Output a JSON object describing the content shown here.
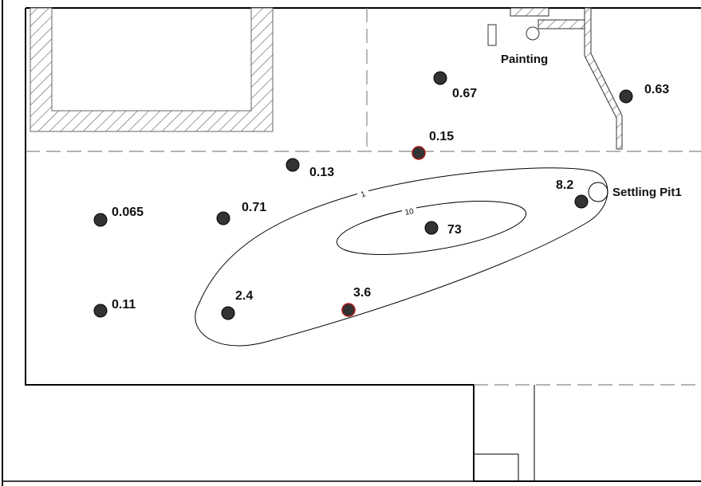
{
  "map": {
    "colors": {
      "background": "#ffffff",
      "wall": "#000000",
      "dashed_line": "#888888",
      "hatch": "#666666",
      "sample_point": "#333333",
      "highlight_ring": "#b01818",
      "contour": "#000000"
    },
    "labels": {
      "painting": "Painting",
      "settling_pit": "Settling Pit1"
    },
    "contours": [
      {
        "level_label": "1"
      },
      {
        "level_label": "10"
      }
    ],
    "samples": [
      {
        "id": "s1",
        "value": "0.67",
        "highlighted": false
      },
      {
        "id": "s2",
        "value": "0.63",
        "highlighted": false
      },
      {
        "id": "s3",
        "value": "0.15",
        "highlighted": true
      },
      {
        "id": "s4",
        "value": "0.13",
        "highlighted": false
      },
      {
        "id": "s5",
        "value": "8.2",
        "highlighted": false
      },
      {
        "id": "s6",
        "value": "0.065",
        "highlighted": false
      },
      {
        "id": "s7",
        "value": "0.71",
        "highlighted": false
      },
      {
        "id": "s8",
        "value": "73",
        "highlighted": false
      },
      {
        "id": "s9",
        "value": "0.11",
        "highlighted": false
      },
      {
        "id": "s10",
        "value": "2.4",
        "highlighted": false
      },
      {
        "id": "s11",
        "value": "3.6",
        "highlighted": true
      }
    ]
  }
}
